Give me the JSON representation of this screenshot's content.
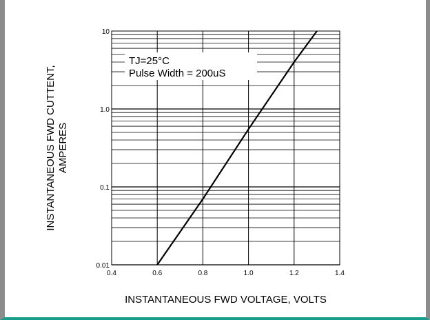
{
  "chart_data": {
    "type": "line",
    "title": "",
    "xlabel": "INSTANTANEOUS FWD VOLTAGE, VOLTS",
    "ylabel_line1": "INSTANTANEOUS FWD CUTTENT,",
    "ylabel_line2": "AMPERES",
    "xlim": [
      0.4,
      1.4
    ],
    "ylim": [
      0.01,
      10
    ],
    "yscale": "log",
    "grid": true,
    "x_ticks": [
      0.4,
      0.6,
      0.8,
      1.0,
      1.2,
      1.4
    ],
    "x_tick_labels": [
      "0.4",
      "0.6",
      "0.8",
      "1.0",
      "1.2",
      "1.4"
    ],
    "y_ticks": [
      0.01,
      0.1,
      1.0,
      10
    ],
    "y_tick_labels": [
      "0.01",
      "0.1",
      "1.0",
      "10"
    ],
    "series": [
      {
        "x": [
          0.6,
          0.8,
          1.0,
          1.2,
          1.3
        ],
        "y": [
          0.01,
          0.07,
          0.55,
          4.0,
          10
        ]
      }
    ],
    "annotations": [
      "TJ=25°C",
      "Pulse Width = 200uS"
    ]
  },
  "colors": {
    "line": "#000000",
    "grid": "#000000",
    "frame_left": "#8c8c8c",
    "frame_bottom": "#1a9c8c"
  }
}
